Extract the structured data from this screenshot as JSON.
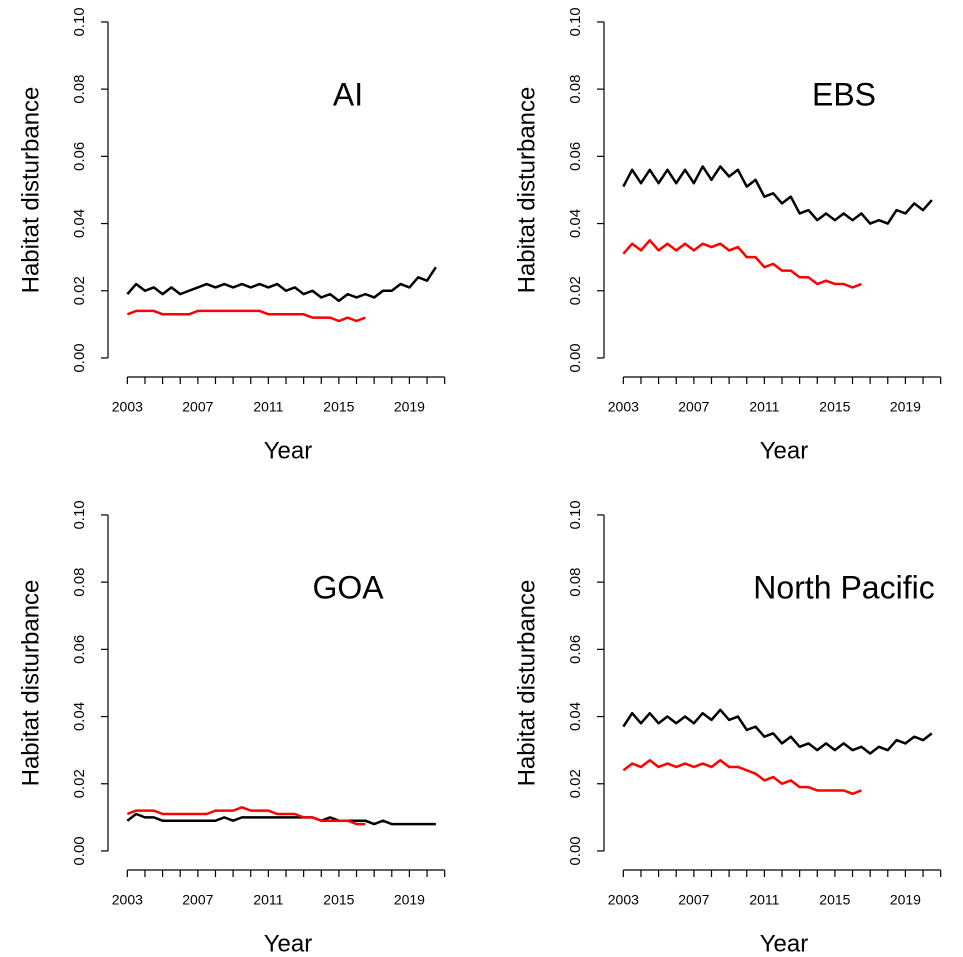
{
  "chart_data": [
    {
      "type": "line",
      "title": "AI",
      "xlabel": "Year",
      "ylabel": "Habitat disturbance",
      "xlim": [
        2002.3,
        2021.7
      ],
      "ylim": [
        -0.004,
        0.104
      ],
      "xticks": [
        2003,
        2007,
        2011,
        2015,
        2019
      ],
      "xminorticks": [
        2004,
        2005,
        2006,
        2008,
        2009,
        2010,
        2012,
        2013,
        2014,
        2016,
        2017,
        2018,
        2020,
        2021
      ],
      "yticks": [
        {
          "value": 0,
          "label": "0.00"
        },
        0.02,
        0.04,
        0.06,
        0.08,
        {
          "value": 0.1,
          "label": "0.10"
        }
      ],
      "series": [
        {
          "color": "#000000",
          "x": [
            2003,
            2003.5,
            2004,
            2004.5,
            2005,
            2005.5,
            2006,
            2006.5,
            2007,
            2007.5,
            2008,
            2008.5,
            2009,
            2009.5,
            2010,
            2010.5,
            2011,
            2011.5,
            2012,
            2012.5,
            2013,
            2013.5,
            2014,
            2014.5,
            2015,
            2015.5,
            2016,
            2016.5,
            2017,
            2017.5,
            2018,
            2018.5,
            2019,
            2019.5,
            2020,
            2020.5
          ],
          "values": [
            0.019,
            0.022,
            0.02,
            0.021,
            0.019,
            0.021,
            0.019,
            0.02,
            0.021,
            0.022,
            0.021,
            0.022,
            0.021,
            0.022,
            0.021,
            0.022,
            0.021,
            0.022,
            0.02,
            0.021,
            0.019,
            0.02,
            0.018,
            0.019,
            0.017,
            0.019,
            0.018,
            0.019,
            0.018,
            0.02,
            0.02,
            0.022,
            0.021,
            0.024,
            0.023,
            0.027
          ]
        },
        {
          "color": "#ff0000",
          "x": [
            2003,
            2003.5,
            2004,
            2004.5,
            2005,
            2005.5,
            2006,
            2006.5,
            2007,
            2007.5,
            2008,
            2008.5,
            2009,
            2009.5,
            2010,
            2010.5,
            2011,
            2011.5,
            2012,
            2012.5,
            2013,
            2013.5,
            2014,
            2014.5,
            2015,
            2015.5,
            2016,
            2016.5
          ],
          "values": [
            0.013,
            0.014,
            0.014,
            0.014,
            0.013,
            0.013,
            0.013,
            0.013,
            0.014,
            0.014,
            0.014,
            0.014,
            0.014,
            0.014,
            0.014,
            0.014,
            0.013,
            0.013,
            0.013,
            0.013,
            0.013,
            0.012,
            0.012,
            0.012,
            0.011,
            0.012,
            0.011,
            0.012
          ]
        }
      ]
    },
    {
      "type": "line",
      "title": "EBS",
      "xlabel": "Year",
      "ylabel": "Habitat disturbance",
      "xlim": [
        2002.3,
        2021.7
      ],
      "ylim": [
        -0.004,
        0.104
      ],
      "xticks": [
        2003,
        2007,
        2011,
        2015,
        2019
      ],
      "xminorticks": [
        2004,
        2005,
        2006,
        2008,
        2009,
        2010,
        2012,
        2013,
        2014,
        2016,
        2017,
        2018,
        2020,
        2021
      ],
      "yticks": [
        {
          "value": 0,
          "label": "0.00"
        },
        0.02,
        0.04,
        0.06,
        0.08,
        {
          "value": 0.1,
          "label": "0.10"
        }
      ],
      "series": [
        {
          "color": "#000000",
          "x": [
            2003,
            2003.5,
            2004,
            2004.5,
            2005,
            2005.5,
            2006,
            2006.5,
            2007,
            2007.5,
            2008,
            2008.5,
            2009,
            2009.5,
            2010,
            2010.5,
            2011,
            2011.5,
            2012,
            2012.5,
            2013,
            2013.5,
            2014,
            2014.5,
            2015,
            2015.5,
            2016,
            2016.5,
            2017,
            2017.5,
            2018,
            2018.5,
            2019,
            2019.5,
            2020,
            2020.5
          ],
          "values": [
            0.051,
            0.056,
            0.052,
            0.056,
            0.052,
            0.056,
            0.052,
            0.056,
            0.052,
            0.057,
            0.053,
            0.057,
            0.054,
            0.056,
            0.051,
            0.053,
            0.048,
            0.049,
            0.046,
            0.048,
            0.043,
            0.044,
            0.041,
            0.043,
            0.041,
            0.043,
            0.041,
            0.043,
            0.04,
            0.041,
            0.04,
            0.044,
            0.043,
            0.046,
            0.044,
            0.047
          ]
        },
        {
          "color": "#ff0000",
          "x": [
            2003,
            2003.5,
            2004,
            2004.5,
            2005,
            2005.5,
            2006,
            2006.5,
            2007,
            2007.5,
            2008,
            2008.5,
            2009,
            2009.5,
            2010,
            2010.5,
            2011,
            2011.5,
            2012,
            2012.5,
            2013,
            2013.5,
            2014,
            2014.5,
            2015,
            2015.5,
            2016,
            2016.5
          ],
          "values": [
            0.031,
            0.034,
            0.032,
            0.035,
            0.032,
            0.034,
            0.032,
            0.034,
            0.032,
            0.034,
            0.033,
            0.034,
            0.032,
            0.033,
            0.03,
            0.03,
            0.027,
            0.028,
            0.026,
            0.026,
            0.024,
            0.024,
            0.022,
            0.023,
            0.022,
            0.022,
            0.021,
            0.022
          ]
        }
      ]
    },
    {
      "type": "line",
      "title": "GOA",
      "xlabel": "Year",
      "ylabel": "Habitat disturbance",
      "xlim": [
        2002.3,
        2021.7
      ],
      "ylim": [
        -0.004,
        0.104
      ],
      "xticks": [
        2003,
        2007,
        2011,
        2015,
        2019
      ],
      "xminorticks": [
        2004,
        2005,
        2006,
        2008,
        2009,
        2010,
        2012,
        2013,
        2014,
        2016,
        2017,
        2018,
        2020,
        2021
      ],
      "yticks": [
        {
          "value": 0,
          "label": "0.00"
        },
        0.02,
        0.04,
        0.06,
        0.08,
        {
          "value": 0.1,
          "label": "0.10"
        }
      ],
      "series": [
        {
          "color": "#000000",
          "x": [
            2003,
            2003.5,
            2004,
            2004.5,
            2005,
            2005.5,
            2006,
            2006.5,
            2007,
            2007.5,
            2008,
            2008.5,
            2009,
            2009.5,
            2010,
            2010.5,
            2011,
            2011.5,
            2012,
            2012.5,
            2013,
            2013.5,
            2014,
            2014.5,
            2015,
            2015.5,
            2016,
            2016.5,
            2017,
            2017.5,
            2018,
            2018.5,
            2019,
            2019.5,
            2020,
            2020.5
          ],
          "values": [
            0.009,
            0.011,
            0.01,
            0.01,
            0.009,
            0.009,
            0.009,
            0.009,
            0.009,
            0.009,
            0.009,
            0.01,
            0.009,
            0.01,
            0.01,
            0.01,
            0.01,
            0.01,
            0.01,
            0.01,
            0.01,
            0.01,
            0.009,
            0.01,
            0.009,
            0.009,
            0.009,
            0.009,
            0.008,
            0.009,
            0.008,
            0.008,
            0.008,
            0.008,
            0.008,
            0.008
          ]
        },
        {
          "color": "#ff0000",
          "x": [
            2003,
            2003.5,
            2004,
            2004.5,
            2005,
            2005.5,
            2006,
            2006.5,
            2007,
            2007.5,
            2008,
            2008.5,
            2009,
            2009.5,
            2010,
            2010.5,
            2011,
            2011.5,
            2012,
            2012.5,
            2013,
            2013.5,
            2014,
            2014.5,
            2015,
            2015.5,
            2016,
            2016.5
          ],
          "values": [
            0.011,
            0.012,
            0.012,
            0.012,
            0.011,
            0.011,
            0.011,
            0.011,
            0.011,
            0.011,
            0.012,
            0.012,
            0.012,
            0.013,
            0.012,
            0.012,
            0.012,
            0.011,
            0.011,
            0.011,
            0.01,
            0.01,
            0.009,
            0.009,
            0.009,
            0.009,
            0.008,
            0.008
          ]
        }
      ]
    },
    {
      "type": "line",
      "title": "North Pacific",
      "xlabel": "Year",
      "ylabel": "Habitat disturbance",
      "xlim": [
        2002.3,
        2021.7
      ],
      "ylim": [
        -0.004,
        0.104
      ],
      "xticks": [
        2003,
        2007,
        2011,
        2015,
        2019
      ],
      "xminorticks": [
        2004,
        2005,
        2006,
        2008,
        2009,
        2010,
        2012,
        2013,
        2014,
        2016,
        2017,
        2018,
        2020,
        2021
      ],
      "yticks": [
        {
          "value": 0,
          "label": "0.00"
        },
        0.02,
        0.04,
        0.06,
        0.08,
        {
          "value": 0.1,
          "label": "0.10"
        }
      ],
      "series": [
        {
          "color": "#000000",
          "x": [
            2003,
            2003.5,
            2004,
            2004.5,
            2005,
            2005.5,
            2006,
            2006.5,
            2007,
            2007.5,
            2008,
            2008.5,
            2009,
            2009.5,
            2010,
            2010.5,
            2011,
            2011.5,
            2012,
            2012.5,
            2013,
            2013.5,
            2014,
            2014.5,
            2015,
            2015.5,
            2016,
            2016.5,
            2017,
            2017.5,
            2018,
            2018.5,
            2019,
            2019.5,
            2020,
            2020.5
          ],
          "values": [
            0.037,
            0.041,
            0.038,
            0.041,
            0.038,
            0.04,
            0.038,
            0.04,
            0.038,
            0.041,
            0.039,
            0.042,
            0.039,
            0.04,
            0.036,
            0.037,
            0.034,
            0.035,
            0.032,
            0.034,
            0.031,
            0.032,
            0.03,
            0.032,
            0.03,
            0.032,
            0.03,
            0.031,
            0.029,
            0.031,
            0.03,
            0.033,
            0.032,
            0.034,
            0.033,
            0.035
          ]
        },
        {
          "color": "#ff0000",
          "x": [
            2003,
            2003.5,
            2004,
            2004.5,
            2005,
            2005.5,
            2006,
            2006.5,
            2007,
            2007.5,
            2008,
            2008.5,
            2009,
            2009.5,
            2010,
            2010.5,
            2011,
            2011.5,
            2012,
            2012.5,
            2013,
            2013.5,
            2014,
            2014.5,
            2015,
            2015.5,
            2016,
            2016.5
          ],
          "values": [
            0.024,
            0.026,
            0.025,
            0.027,
            0.025,
            0.026,
            0.025,
            0.026,
            0.025,
            0.026,
            0.025,
            0.027,
            0.025,
            0.025,
            0.024,
            0.023,
            0.021,
            0.022,
            0.02,
            0.021,
            0.019,
            0.019,
            0.018,
            0.018,
            0.018,
            0.018,
            0.017,
            0.018
          ]
        }
      ]
    }
  ]
}
